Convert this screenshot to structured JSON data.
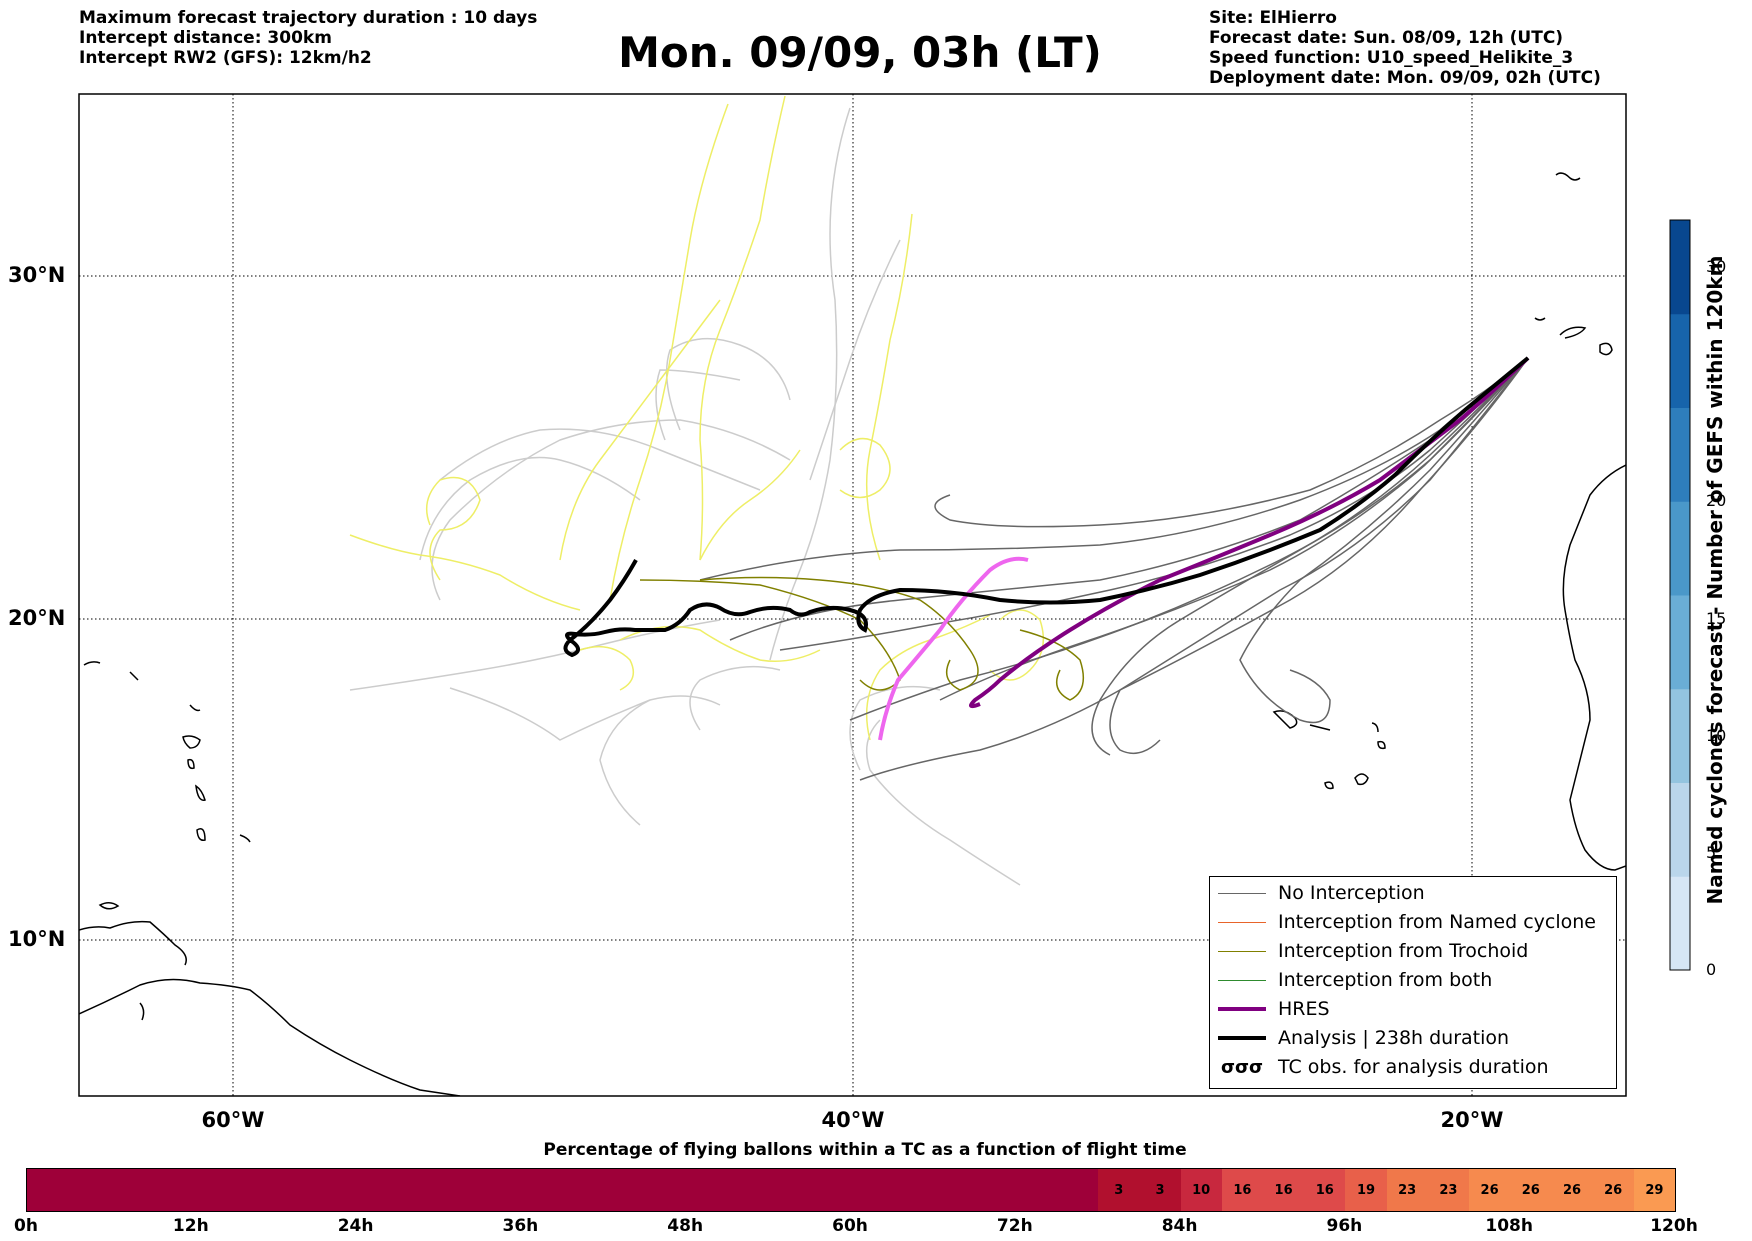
{
  "header": {
    "left_lines": [
      "Maximum forecast trajectory duration : 10 days",
      "Intercept distance: 300km",
      "Intercept RW2 (GFS):  12km/h2"
    ],
    "title": "Mon. 09/09, 03h (LT)",
    "right_lines": [
      "Site: ElHierro",
      "Forecast date: Sun. 08/09, 12h (UTC)",
      "Speed function: U10_speed_Helikite_3",
      "Deployment date: Mon. 09/09, 02h (UTC)"
    ]
  },
  "map": {
    "lat_labels": [
      "30°N",
      "20°N",
      "10°N"
    ],
    "lon_labels": [
      "60°W",
      "40°W",
      "20°W"
    ],
    "colors": {
      "no_interception": "#666666",
      "named_cyclone": "#e8642a",
      "trochoid": "#808000",
      "both": "#2e8b2e",
      "hres": "#800080",
      "hres_light": "#ee66ee",
      "analysis": "#000000",
      "ensemble_light": "#cccccc",
      "ensemble_yellow": "#eeee66"
    }
  },
  "legend": {
    "items": [
      {
        "label": "No Interception",
        "color": "#666666",
        "style": "thin"
      },
      {
        "label": "Interception from Named cyclone",
        "color": "#e8642a",
        "style": "thin"
      },
      {
        "label": "Interception from Trochoid",
        "color": "#808000",
        "style": "thin"
      },
      {
        "label": "Interception from both",
        "color": "#2e8b2e",
        "style": "thin"
      },
      {
        "label": "HRES",
        "color": "#800080",
        "style": "thick"
      },
      {
        "label": "Analysis | 238h duration",
        "color": "#000000",
        "style": "thick"
      },
      {
        "label": "TC obs. for analysis duration",
        "color": "#000000",
        "style": "symbol"
      }
    ]
  },
  "colorbar": {
    "label": "Named cyclones forecast - Number of GEFS within 120km",
    "ticks": [
      0,
      5,
      10,
      15,
      20,
      30
    ],
    "range": [
      0,
      32
    ],
    "colors": [
      "#d6e6f5",
      "#bad6eb",
      "#93c4df",
      "#6aaed6",
      "#4a98c9",
      "#2e7ebc",
      "#1764ab",
      "#08478f"
    ]
  },
  "bottom_bar": {
    "title": "Percentage of flying ballons within a TC as a function of flight time",
    "ticks": [
      "0h",
      "12h",
      "24h",
      "36h",
      "48h",
      "60h",
      "72h",
      "84h",
      "96h",
      "108h",
      "120h"
    ],
    "base_color": "#9e0039",
    "cells": [
      {
        "hour_start": 78,
        "value": "3",
        "color": "#b1102e"
      },
      {
        "hour_start": 81,
        "value": "3",
        "color": "#b1102e"
      },
      {
        "hour_start": 84,
        "value": "10",
        "color": "#c8283e"
      },
      {
        "hour_start": 87,
        "value": "16",
        "color": "#de4a4a"
      },
      {
        "hour_start": 90,
        "value": "16",
        "color": "#de4a4a"
      },
      {
        "hour_start": 93,
        "value": "16",
        "color": "#de4a4a"
      },
      {
        "hour_start": 96,
        "value": "19",
        "color": "#e8604a"
      },
      {
        "hour_start": 99,
        "value": "23",
        "color": "#f0784a"
      },
      {
        "hour_start": 102,
        "value": "23",
        "color": "#f0784a"
      },
      {
        "hour_start": 105,
        "value": "26",
        "color": "#f68a4e"
      },
      {
        "hour_start": 108,
        "value": "26",
        "color": "#f68a4e"
      },
      {
        "hour_start": 111,
        "value": "26",
        "color": "#f68a4e"
      },
      {
        "hour_start": 114,
        "value": "26",
        "color": "#f68a4e"
      },
      {
        "hour_start": 117,
        "value": "29",
        "color": "#fa9a52"
      }
    ]
  }
}
